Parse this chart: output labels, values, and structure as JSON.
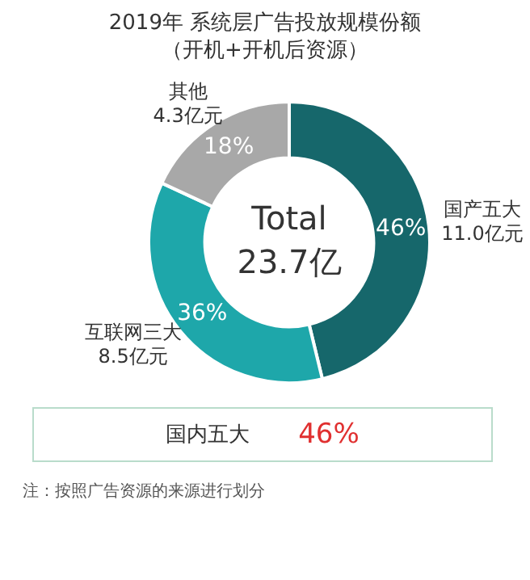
{
  "chart_data": {
    "type": "donut",
    "title": "2019年 系统层广告投放规模份额",
    "subtitle": "（开机+开机后资源）",
    "categories": [
      "国产五大",
      "互联网三大",
      "其他"
    ],
    "values": [
      11.0,
      8.5,
      4.3
    ],
    "value_labels": [
      "11.0亿元",
      "8.5亿元",
      "4.3亿元"
    ],
    "colors": [
      "#16676b",
      "#1ea7aa",
      "#a8a8a8"
    ],
    "legend": false,
    "annotations": [
      {
        "text": "46%",
        "x": "国产五大"
      },
      {
        "text": "36%",
        "x": "互联网三大"
      },
      {
        "text": "18%",
        "x": "其他"
      },
      "Total",
      "23.7亿",
      "国内五大",
      "46%",
      "注：按照广告资源的来源进行划分"
    ]
  }
}
